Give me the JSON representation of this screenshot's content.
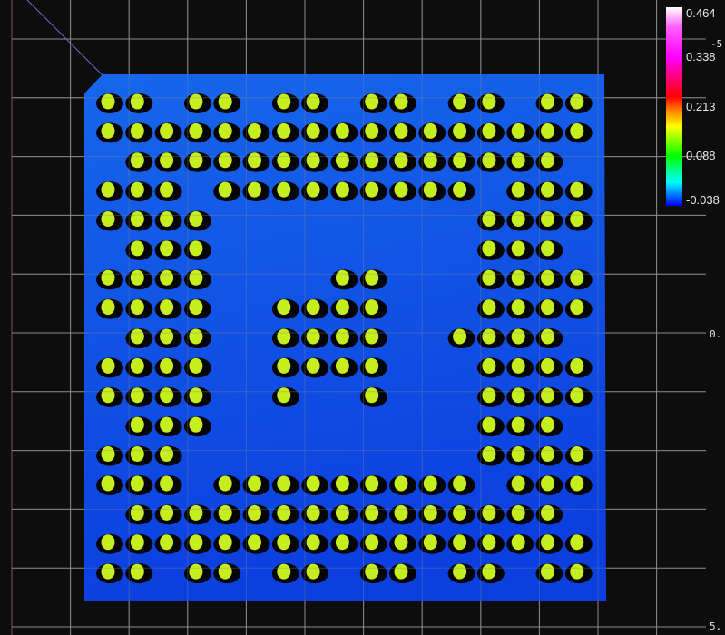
{
  "viewer": {
    "axis_labels": {
      "top": "-5",
      "middle": "0.",
      "bottom": "5."
    },
    "colorbar": {
      "ticks": [
        "0.464",
        "0.338",
        "0.213",
        "0.088",
        "-0.038"
      ],
      "colormap": [
        "#ffffff",
        "#ff00ff",
        "#ff0000",
        "#ffff00",
        "#00ff00",
        "#00ffff",
        "#0000ff"
      ]
    },
    "colors": {
      "background": "#0d0d0d",
      "grid": "#8a8a8a",
      "substrate_top": "#1766ea",
      "substrate_bottom": "#0b3fe0",
      "ball": "#c6ee1e",
      "ball_shadow": "#050505"
    },
    "ball_map": [
      "11011011011011011",
      "11111111111111111",
      "01111111111111110",
      "11101111111110111",
      "11110000000001111",
      "01110000000001110",
      "11110000110001111",
      "11110011110001111",
      "01110011110011110",
      "11110011110001111",
      "11110010010001111",
      "01110000000001110",
      "11100000000001111",
      "11101111111110111",
      "01111111111111110",
      "11111111111111111",
      "11011011011011011"
    ]
  }
}
